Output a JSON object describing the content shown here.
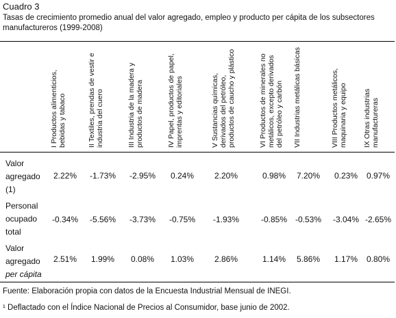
{
  "table": {
    "title": "Cuadro 3",
    "subtitle": "Tasas de crecimiento promedio anual del valor agregado, empleo y producto per cápita de los subsectores manufactureros (1999-2008)",
    "columns": [
      "I Productos alimenticios, bebidas y tabaco",
      "II Textiles, prendas de vestir e industria del cuero",
      "III Industria de la madera y productos de madera",
      "IV Papel, productos de papel, imprentas y editoriales",
      "V Sustancias químicas, derivados del petróleo, productos de caucho y plástico",
      "VI Productos de minerales no metálicos, excepto derivados del petróleo y carbón",
      "VII Industrias metálicas básicas",
      "VIII Productos metálicos, maquinaria y equipo",
      "IX Otras industrias manufactureras"
    ],
    "rows": [
      {
        "label": [
          "Valor agregado (1)"
        ],
        "values": [
          "2.22%",
          "-1.73%",
          "-2.95%",
          "0.24%",
          "2.20%",
          "0.98%",
          "7.20%",
          "0.23%",
          "0.97%"
        ]
      },
      {
        "label": [
          "Personal ocupado total"
        ],
        "values": [
          "-0.34%",
          "-5.56%",
          "-3.73%",
          "-0.75%",
          "-1.93%",
          "-0.85%",
          "-0.53%",
          "-3.04%",
          "-2.65%"
        ]
      },
      {
        "label": [
          "Valor agregado",
          "per cápita"
        ],
        "values": [
          "2.51%",
          "1.99%",
          "0.08%",
          "1.03%",
          "2.86%",
          "1.14%",
          "5.86%",
          "1.17%",
          "0.80%"
        ]
      }
    ]
  },
  "source": "Fuente: Elaboración propia con datos de la Encuesta Industrial Mensual de INEGI.",
  "footnote": "¹ Deflactado con el Índice Nacional de Precios al Consumidor, base junio de 2002."
}
